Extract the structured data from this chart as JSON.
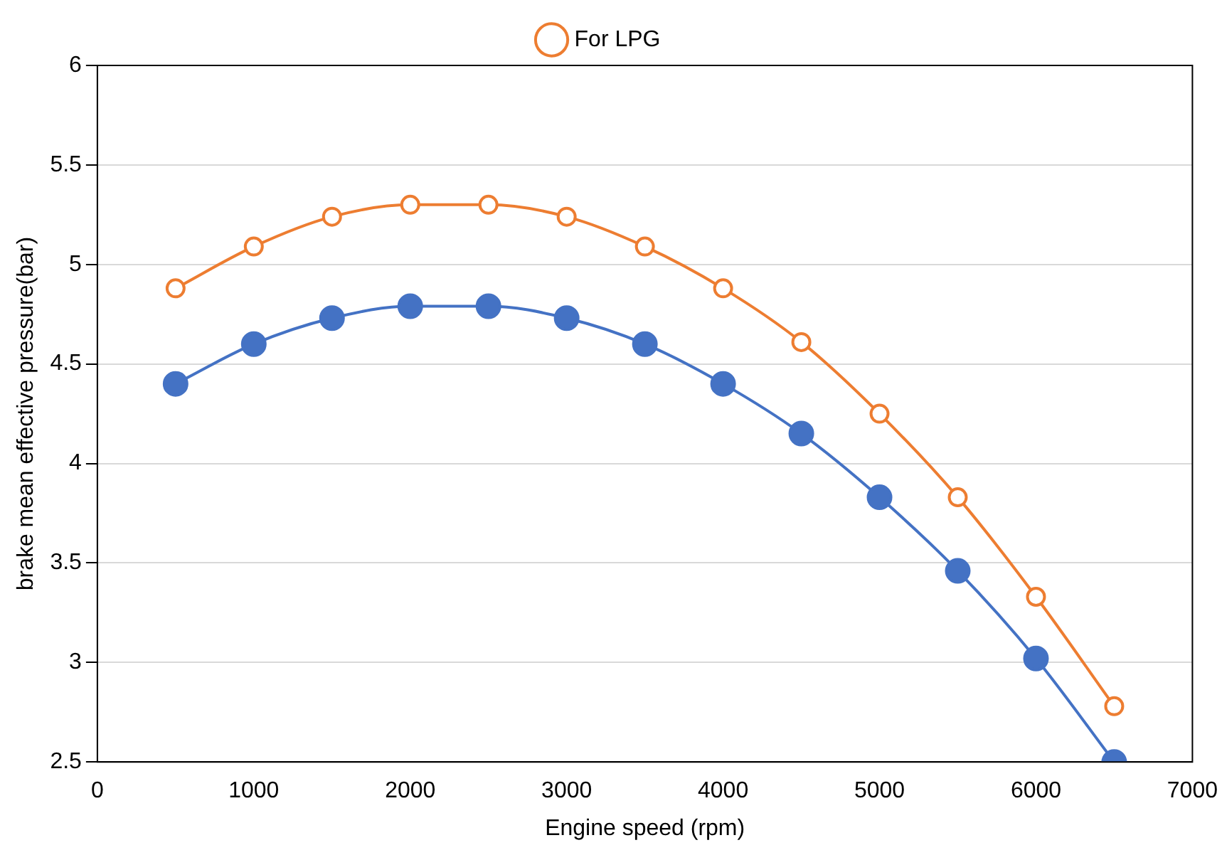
{
  "chart_data": {
    "type": "line",
    "xlabel": "Engine speed (rpm)",
    "ylabel": "brake mean effective pressure(bar)",
    "x": [
      500,
      1000,
      1500,
      2000,
      2500,
      3000,
      3500,
      4000,
      4500,
      5000,
      5500,
      6000,
      6500
    ],
    "series": [
      {
        "name": "For LPG",
        "color": "#ed7d31",
        "values": [
          4.88,
          5.09,
          5.24,
          5.3,
          5.3,
          5.24,
          5.09,
          4.88,
          4.61,
          4.25,
          3.83,
          3.33,
          2.78
        ]
      },
      {
        "color": "#4472c4",
        "values": [
          4.4,
          4.6,
          4.73,
          4.79,
          4.79,
          4.73,
          4.6,
          4.4,
          4.15,
          3.83,
          3.46,
          3.02,
          2.5
        ]
      }
    ],
    "xlim": [
      0,
      7000
    ],
    "xticks": [
      0,
      1000,
      2000,
      3000,
      4000,
      5000,
      6000,
      7000
    ],
    "ylim": [
      2.5,
      6
    ],
    "yticks": [
      2.5,
      3,
      3.5,
      4,
      4.5,
      5,
      5.5,
      6
    ],
    "grid": "y",
    "legend": "top",
    "marker": "circle",
    "line_style": "solid"
  }
}
